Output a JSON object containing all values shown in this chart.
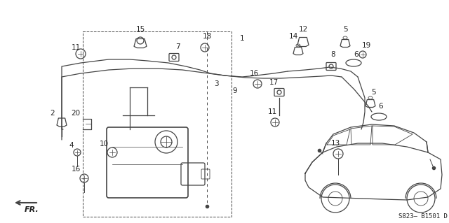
{
  "diagram_code": "S823– B1501 D",
  "bg_color": "#ffffff",
  "line_color": "#444444",
  "label_color": "#222222",
  "figsize": [
    6.4,
    3.19
  ],
  "dpi": 100
}
